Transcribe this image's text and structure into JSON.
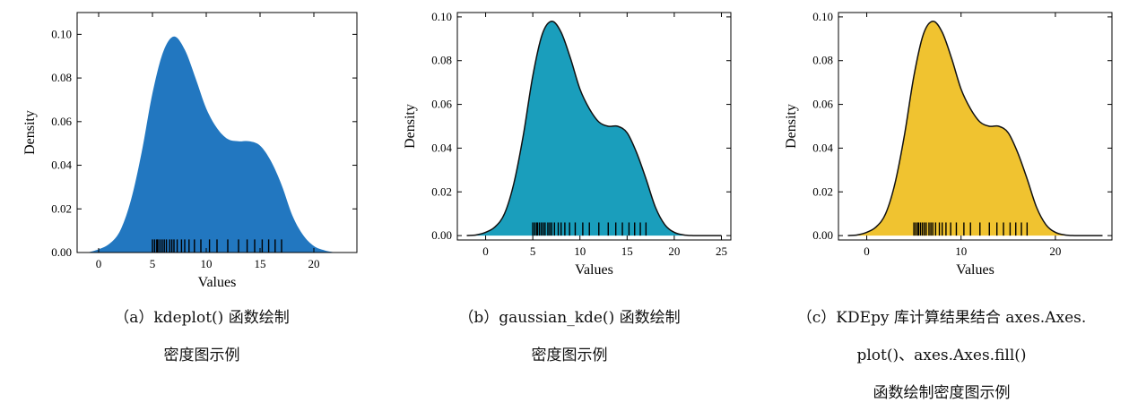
{
  "chart_data": [
    {
      "type": "area",
      "xlabel": "Values",
      "ylabel": "Density",
      "xlim": [
        -2,
        24
      ],
      "ylim": [
        0,
        0.11
      ],
      "xticks": [
        0,
        5,
        10,
        15,
        20
      ],
      "yticks": [
        0.0,
        0.02,
        0.04,
        0.06,
        0.08,
        0.1
      ],
      "ytick_labels": [
        "0.00",
        "0.02",
        "0.04",
        "0.06",
        "0.08",
        "0.10"
      ],
      "outline": false,
      "fill_color": "#2277c0",
      "caption_lines": [
        "（a）kdeplot() 函数绘制",
        "密度图示例"
      ],
      "x": [
        -1,
        0,
        1,
        2,
        3,
        4,
        5,
        6,
        7,
        8,
        9,
        10,
        11,
        12,
        13,
        14,
        15,
        16,
        17,
        18,
        19,
        20,
        21,
        22
      ],
      "y": [
        0.0,
        0.0015,
        0.004,
        0.01,
        0.024,
        0.046,
        0.073,
        0.092,
        0.099,
        0.093,
        0.08,
        0.066,
        0.057,
        0.052,
        0.051,
        0.051,
        0.049,
        0.042,
        0.031,
        0.017,
        0.008,
        0.003,
        0.001,
        0.0
      ]
    },
    {
      "type": "area",
      "xlabel": "Values",
      "ylabel": "Density",
      "xlim": [
        -3,
        26
      ],
      "ylim": [
        -0.002,
        0.102
      ],
      "xticks": [
        0,
        5,
        10,
        15,
        20,
        25
      ],
      "yticks": [
        0.0,
        0.02,
        0.04,
        0.06,
        0.08,
        0.1
      ],
      "ytick_labels": [
        "0.00",
        "0.02",
        "0.04",
        "0.06",
        "0.08",
        "0.10"
      ],
      "outline": true,
      "fill_color": "#1a9ebc",
      "caption_lines": [
        "（b）gaussian_kde() 函数绘制",
        "密度图示例"
      ],
      "x": [
        -2,
        -1,
        0,
        1,
        2,
        3,
        4,
        5,
        6,
        7,
        8,
        9,
        10,
        11,
        12,
        13,
        14,
        15,
        16,
        17,
        18,
        19,
        20,
        21,
        22,
        23,
        24,
        25
      ],
      "y": [
        0.0,
        0.0003,
        0.0015,
        0.004,
        0.01,
        0.024,
        0.046,
        0.073,
        0.092,
        0.098,
        0.093,
        0.081,
        0.067,
        0.058,
        0.052,
        0.05,
        0.05,
        0.047,
        0.038,
        0.026,
        0.013,
        0.005,
        0.0015,
        0.0003,
        0.0,
        0.0,
        0.0,
        0.0
      ]
    },
    {
      "type": "area",
      "xlabel": "Values",
      "ylabel": "Density",
      "xlim": [
        -3,
        26
      ],
      "ylim": [
        -0.002,
        0.102
      ],
      "xticks": [
        0,
        10,
        20
      ],
      "yticks": [
        0.0,
        0.02,
        0.04,
        0.06,
        0.08,
        0.1
      ],
      "ytick_labels": [
        "0.00",
        "0.02",
        "0.04",
        "0.06",
        "0.08",
        "0.10"
      ],
      "outline": true,
      "fill_color": "#f0c330",
      "caption_lines": [
        "（c）KDEpy 库计算结果结合 axes.Axes.",
        "plot()、axes.Axes.fill()",
        "函数绘制密度图示例"
      ],
      "x": [
        -2,
        -1,
        0,
        1,
        2,
        3,
        4,
        5,
        6,
        7,
        8,
        9,
        10,
        11,
        12,
        13,
        14,
        15,
        16,
        17,
        18,
        19,
        20,
        21,
        22,
        23,
        24,
        25
      ],
      "y": [
        0.0,
        0.0003,
        0.0015,
        0.004,
        0.01,
        0.024,
        0.046,
        0.073,
        0.092,
        0.098,
        0.093,
        0.081,
        0.067,
        0.058,
        0.052,
        0.05,
        0.05,
        0.047,
        0.038,
        0.026,
        0.013,
        0.005,
        0.0015,
        0.0003,
        0.0,
        0.0,
        0.0,
        0.0
      ]
    }
  ],
  "rug": {
    "color": "#000000",
    "values": [
      5.0,
      5.2,
      5.4,
      5.5,
      5.7,
      5.9,
      6.1,
      6.3,
      6.6,
      6.8,
      7.0,
      7.3,
      7.7,
      8.0,
      8.4,
      8.9,
      9.5,
      10.3,
      11.0,
      12.0,
      13.0,
      13.8,
      14.5,
      15.2,
      15.8,
      16.4,
      17.0
    ]
  }
}
